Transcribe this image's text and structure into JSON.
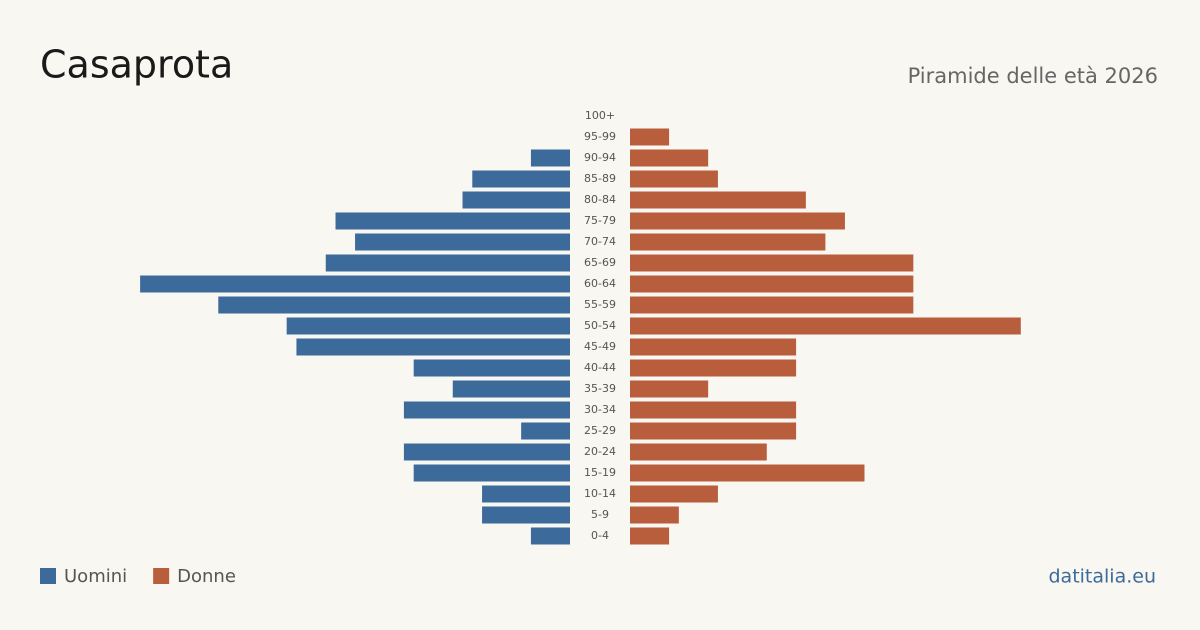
{
  "chart_data": {
    "type": "pyramid",
    "title": "Casaprota",
    "subtitle": "Piramide delle età 2026",
    "source": "datitalia.eu",
    "categories": [
      "100+",
      "95-99",
      "90-94",
      "85-89",
      "80-84",
      "75-79",
      "70-74",
      "65-69",
      "60-64",
      "55-59",
      "50-54",
      "45-49",
      "40-44",
      "35-39",
      "30-34",
      "25-29",
      "20-24",
      "15-19",
      "10-14",
      "5-9",
      "0-4"
    ],
    "series": [
      {
        "name": "Uomini",
        "color": "#3b6a9b",
        "values": [
          0,
          0,
          4,
          10,
          11,
          24,
          22,
          25,
          44,
          36,
          29,
          28,
          16,
          12,
          17,
          5,
          17,
          16,
          9,
          9,
          4
        ]
      },
      {
        "name": "Donne",
        "color": "#b95e3d",
        "values": [
          0,
          4,
          8,
          9,
          18,
          22,
          20,
          29,
          29,
          29,
          40,
          17,
          17,
          8,
          17,
          17,
          14,
          24,
          9,
          5,
          4
        ]
      }
    ]
  }
}
